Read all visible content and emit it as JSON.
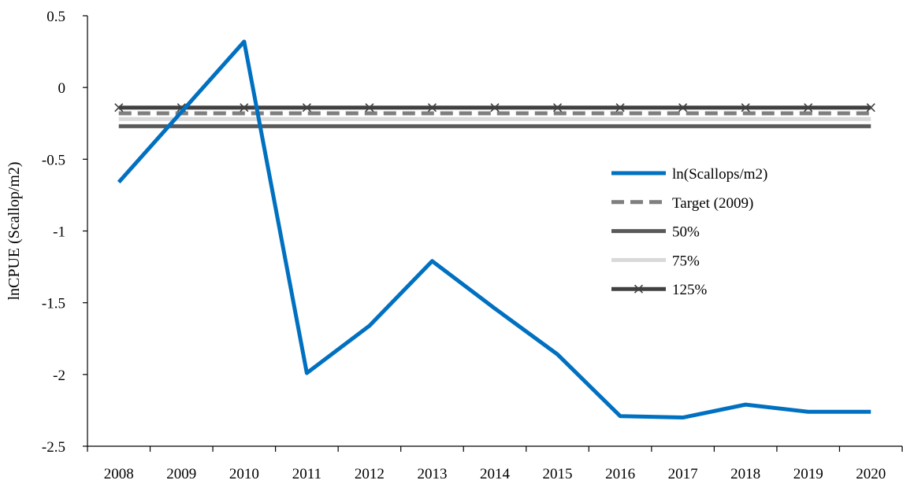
{
  "chart_data": {
    "type": "line",
    "title": "",
    "xlabel": "",
    "ylabel": "lnCPUE (Scallop/m2)",
    "categories": [
      "2008",
      "2009",
      "2010",
      "2011",
      "2012",
      "2013",
      "2014",
      "2015",
      "2016",
      "2017",
      "2018",
      "2019",
      "2020"
    ],
    "ylim": [
      -2.5,
      0.5
    ],
    "yticks": [
      0.5,
      0,
      -0.5,
      -1,
      -1.5,
      -2,
      -2.5
    ],
    "ytick_labels": [
      "0.5",
      "0",
      "-0.5",
      "-1",
      "-1.5",
      "-2",
      "-2.5"
    ],
    "grid": false,
    "legend_position": "right",
    "series": [
      {
        "name": "ln(Scallops/m2)",
        "color": "#0070C0",
        "style": "solid",
        "values": [
          -0.66,
          -0.17,
          0.32,
          -1.99,
          -1.66,
          -1.21,
          -1.54,
          -1.86,
          -2.29,
          -2.3,
          -2.21,
          -2.26,
          -2.26
        ]
      },
      {
        "name": "Target (2009)",
        "color": "#7F7F7F",
        "style": "dashed",
        "values": [
          -0.18,
          -0.18,
          -0.18,
          -0.18,
          -0.18,
          -0.18,
          -0.18,
          -0.18,
          -0.18,
          -0.18,
          -0.18,
          -0.18,
          -0.18
        ]
      },
      {
        "name": "50%",
        "color": "#595959",
        "style": "solid",
        "values": [
          -0.27,
          -0.27,
          -0.27,
          -0.27,
          -0.27,
          -0.27,
          -0.27,
          -0.27,
          -0.27,
          -0.27,
          -0.27,
          -0.27,
          -0.27
        ]
      },
      {
        "name": "75%",
        "color": "#D9D9D9",
        "style": "solid",
        "values": [
          -0.22,
          -0.22,
          -0.22,
          -0.22,
          -0.22,
          -0.22,
          -0.22,
          -0.22,
          -0.22,
          -0.22,
          -0.22,
          -0.22,
          -0.22
        ]
      },
      {
        "name": "125%",
        "color": "#404040",
        "style": "solid-x",
        "values": [
          -0.14,
          -0.14,
          -0.14,
          -0.14,
          -0.14,
          -0.14,
          -0.14,
          -0.14,
          -0.14,
          -0.14,
          -0.14,
          -0.14,
          -0.14
        ]
      }
    ]
  }
}
